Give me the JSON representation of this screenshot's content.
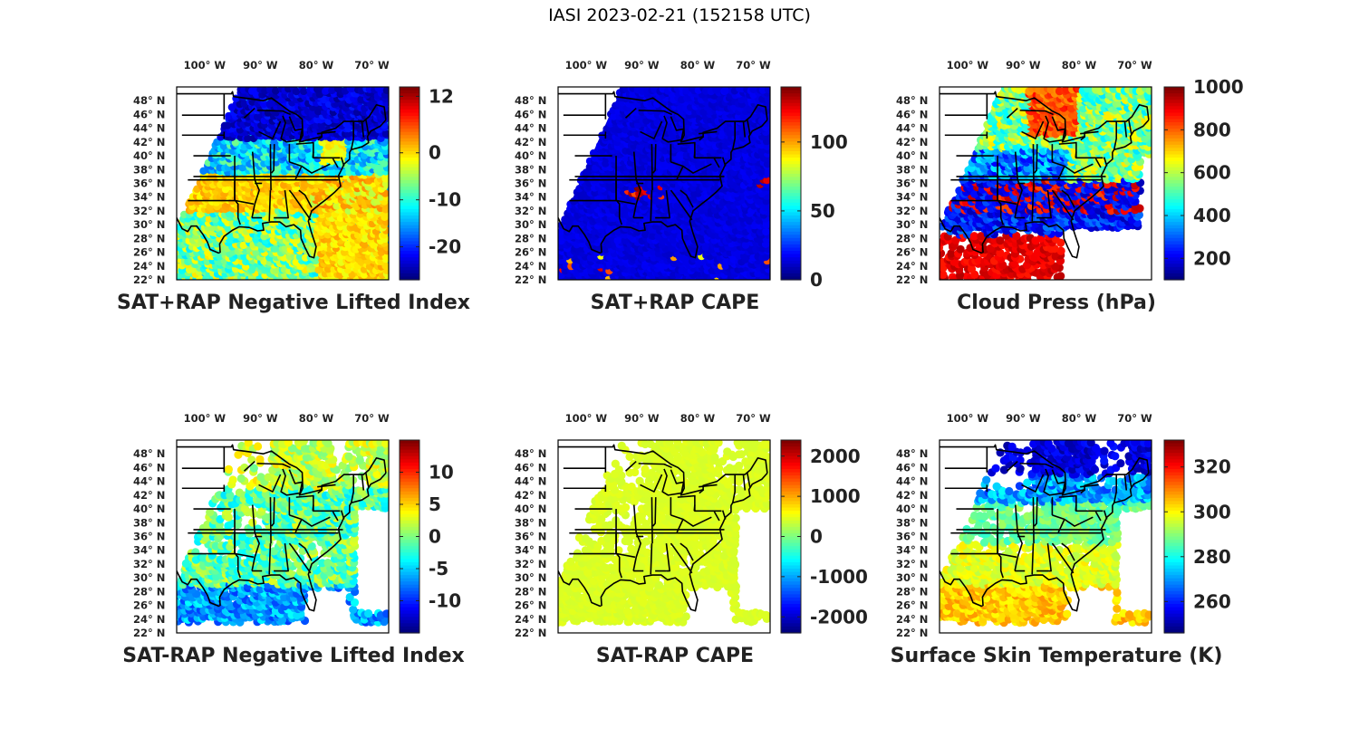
{
  "figure": {
    "title": "IASI 2023-02-21 (152158 UTC)",
    "lon_tick_labels": [
      "100° W",
      "90° W",
      "80° W",
      "70° W"
    ],
    "lat_tick_labels": [
      "22° N",
      "24° N",
      "26° N",
      "28° N",
      "30° N",
      "32° N",
      "34° N",
      "36° N",
      "38° N",
      "40° N",
      "42° N",
      "44° N",
      "46° N",
      "48° N"
    ],
    "colormap": "jet"
  },
  "panels": [
    {
      "id": "sat-rap-neg-lifted-index",
      "title": "SAT+RAP Negative Lifted Index",
      "colorbar": {
        "range": [
          -27,
          14
        ],
        "ticks": [
          12,
          0,
          -10,
          -20
        ],
        "tick_labels": [
          "12",
          "0",
          "-10",
          "-20"
        ]
      },
      "field": "nli"
    },
    {
      "id": "sat-rap-cape",
      "title": "SAT+RAP CAPE",
      "colorbar": {
        "range": [
          0,
          140
        ],
        "ticks": [
          100,
          50,
          0
        ],
        "tick_labels": [
          "100",
          "50",
          "0"
        ]
      },
      "field": "cape"
    },
    {
      "id": "cloud-press",
      "title": "Cloud Press (hPa)",
      "colorbar": {
        "range": [
          100,
          1000
        ],
        "ticks": [
          1000,
          800,
          600,
          400,
          200
        ],
        "tick_labels": [
          "1000",
          "800",
          "600",
          "400",
          "200"
        ]
      },
      "field": "cloud"
    },
    {
      "id": "sat-minus-rap-neg-lifted-index",
      "title": "SAT-RAP Negative Lifted Index",
      "colorbar": {
        "range": [
          -15,
          15
        ],
        "ticks": [
          10,
          5,
          0,
          -5,
          -10
        ],
        "tick_labels": [
          "10",
          "5",
          "0",
          "-5",
          "-10"
        ]
      },
      "field": "dnli"
    },
    {
      "id": "sat-minus-rap-cape",
      "title": "SAT-RAP CAPE",
      "colorbar": {
        "range": [
          -2400,
          2400
        ],
        "ticks": [
          2000,
          1000,
          0,
          -1000,
          -2000
        ],
        "tick_labels": [
          "2000",
          "1000",
          "0",
          "-1000",
          "-2000"
        ]
      },
      "field": "dcape"
    },
    {
      "id": "surface-skin-temperature",
      "title": "Surface Skin Temperature (K)",
      "colorbar": {
        "range": [
          246,
          332
        ],
        "ticks": [
          320,
          300,
          280,
          260
        ],
        "tick_labels": [
          "320",
          "300",
          "280",
          "260"
        ]
      },
      "field": "skin"
    }
  ]
}
